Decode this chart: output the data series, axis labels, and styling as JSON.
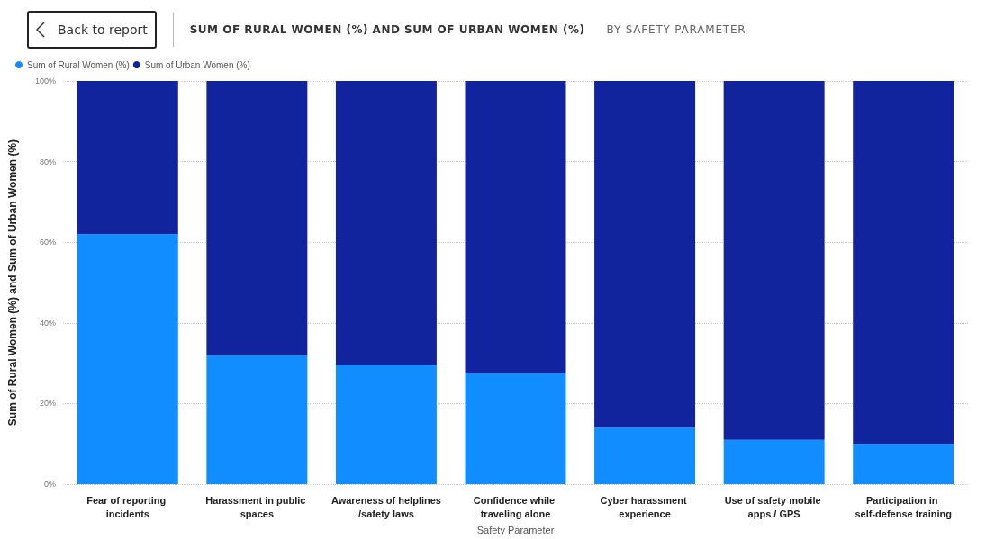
{
  "chart_data": {
    "type": "bar",
    "title": "SUM OF RURAL WOMEN (%) AND SUM OF URBAN WOMEN (%)",
    "subtitle": "BY SAFETY PARAMETER",
    "xlabel": "Safety Parameter",
    "ylabel": "Sum of Rural Women (%) and Sum of Urban Women (%)",
    "annotations": [
      "Back to report"
    ],
    "categories": [
      "Fear of reporting incidents",
      "Harassment in public spaces",
      "Awareness of helplines/safety laws",
      "Confidence while traveling alone",
      "Cyber harassment experience",
      "Use of safety mobile apps / GPS",
      "Participation in self-defense training"
    ],
    "stacked": true,
    "series": [
      {
        "name": "Sum of Rural Women (%)",
        "color": "#118dff",
        "values": [
          62,
          32,
          29.5,
          27.5,
          14,
          11,
          10
        ]
      },
      {
        "name": "Sum of Urban Women (%)",
        "color": "#12239e",
        "values": [
          38,
          68,
          70.5,
          72.5,
          86,
          89,
          90
        ]
      }
    ],
    "ylim": [
      0,
      100
    ],
    "yticks": [
      {
        "value": 0,
        "label": "0%"
      },
      {
        "value": 20,
        "label": "20%"
      },
      {
        "value": 40,
        "label": "40%"
      },
      {
        "value": 60,
        "label": "60%"
      },
      {
        "value": 80,
        "label": "80%"
      },
      {
        "value": 100,
        "label": "100%"
      }
    ],
    "grid": "y",
    "legend": "top left"
  }
}
